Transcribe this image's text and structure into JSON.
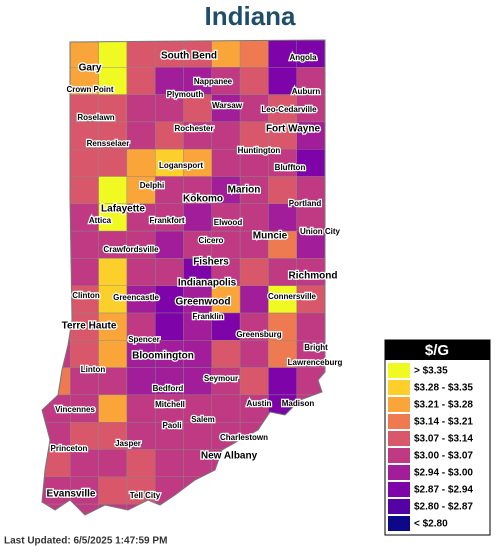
{
  "title": "Indiana",
  "legend": {
    "title": "$/G",
    "items": [
      {
        "label": "> $3.35",
        "color": "#f0f921"
      },
      {
        "label": "$3.28 - $3.35",
        "color": "#fccf2a"
      },
      {
        "label": "$3.21 - $3.28",
        "color": "#f9a53a"
      },
      {
        "label": "$3.14 - $3.21",
        "color": "#ee7a51"
      },
      {
        "label": "$3.07 - $3.14",
        "color": "#d9576a"
      },
      {
        "label": "$3.00 - $3.07",
        "color": "#c03a83"
      },
      {
        "label": "$2.94 - $3.00",
        "color": "#a11d9a"
      },
      {
        "label": "$2.87 - $2.94",
        "color": "#7e03a8"
      },
      {
        "label": "$2.80 - $2.87",
        "color": "#5402a3"
      },
      {
        "label": "< $2.80",
        "color": "#0d0887"
      }
    ]
  },
  "cities": [
    "Gary",
    "Crown Point",
    "South Bend",
    "Angola",
    "Nappanee",
    "Auburn",
    "Plymouth",
    "Warsaw",
    "Leo-Cedarville",
    "Roselawn",
    "Rochester",
    "Fort Wayne",
    "Rensselaer",
    "Huntington",
    "Logansport",
    "Bluffton",
    "Delphi",
    "Marion",
    "Lafayette",
    "Kokomo",
    "Portland",
    "Attica",
    "Frankfort",
    "Elwood",
    "Union City",
    "Crawfordsville",
    "Cicero",
    "Muncie",
    "Fishers",
    "Richmond",
    "Indianapolis",
    "Clinton",
    "Greencastle",
    "Greenwood",
    "Connersville",
    "Terre Haute",
    "Franklin",
    "Greensburg",
    "Spencer",
    "Bright",
    "Bloomington",
    "Lawrenceburg",
    "Linton",
    "Seymour",
    "Bedford",
    "Vincennes",
    "Mitchell",
    "Austin",
    "Madison",
    "Salem",
    "Paoli",
    "Charlestown",
    "Princeton",
    "Jasper",
    "New Albany",
    "Evansville",
    "Tell City"
  ],
  "footer": "Last Updated: 6/5/2025 1:47:59 PM"
}
